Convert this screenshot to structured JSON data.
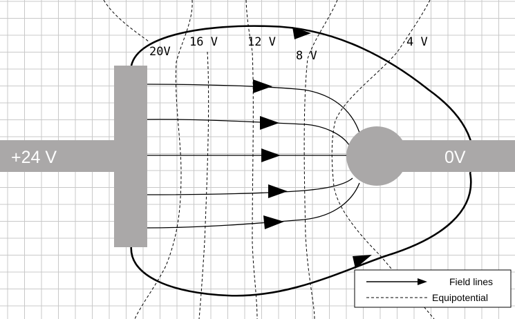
{
  "electrodes": {
    "left_label": "+24 V",
    "right_label": "0V"
  },
  "equipotentials": [
    {
      "label": "20V"
    },
    {
      "label": "16 V"
    },
    {
      "label": "12 V"
    },
    {
      "label": "8 V"
    },
    {
      "label": "4 V"
    }
  ],
  "legend": {
    "field_lines": "Field lines",
    "equipotential": "Equipotential"
  },
  "colors": {
    "electrode": "#aaa8a8",
    "grid": "#c8c8c8",
    "line": "#000000"
  }
}
